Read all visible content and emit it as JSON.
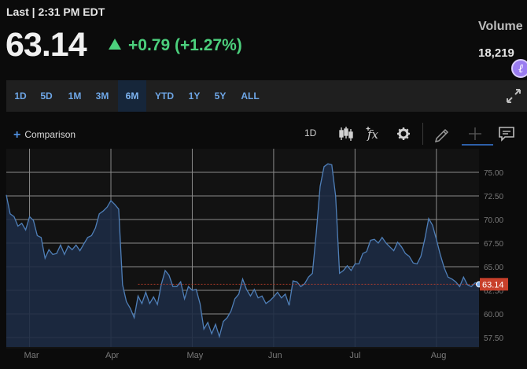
{
  "quote": {
    "last_label": "Last | 2:31 PM EDT",
    "price": "63.14",
    "change": "+0.79 (+1.27%)",
    "volume_label": "Volume",
    "volume_value": "18,219"
  },
  "ranges": [
    "1D",
    "5D",
    "1M",
    "3M",
    "6M",
    "YTD",
    "1Y",
    "5Y",
    "ALL"
  ],
  "active_range": "6M",
  "toolbar": {
    "comparison_label": "Comparison",
    "interval_label": "1D",
    "icons": [
      "candlestick-icon",
      "indicator-fx-icon",
      "settings-gear-icon",
      "draw-pencil-icon",
      "crosshair-icon",
      "comment-icon"
    ]
  },
  "colors": {
    "accent": "#4f8edc",
    "up": "#4cd07d",
    "line": "#4f7fb8",
    "fill": "#1d2b44",
    "price_tag": "#c8402b"
  },
  "chart_data": {
    "type": "area",
    "ylim": [
      56.5,
      76.5
    ],
    "yticks": [
      57.5,
      60.0,
      62.5,
      65.0,
      67.5,
      70.0,
      72.5,
      75.0
    ],
    "ytick_labels": [
      "57.50",
      "60.00",
      "62.50",
      "65.00",
      "67.50",
      "70.00",
      "72.50",
      "75.00"
    ],
    "xticks": [
      "Mar",
      "Apr",
      "May",
      "Jun",
      "Jul",
      "Aug"
    ],
    "x_axis_range": [
      0,
      122
    ],
    "xtick_positions": [
      6,
      27,
      48,
      69,
      90,
      111
    ],
    "last_price_tag": "63.14",
    "last_price": 63.14,
    "values": [
      72.6,
      70.6,
      70.3,
      69.3,
      69.6,
      68.9,
      70.3,
      69.9,
      68.3,
      68.1,
      65.9,
      66.8,
      66.3,
      66.4,
      67.3,
      66.3,
      67.2,
      66.8,
      67.3,
      66.7,
      67.4,
      68.1,
      68.3,
      69.1,
      70.6,
      70.9,
      71.3,
      72.0,
      71.6,
      71.1,
      63.1,
      61.3,
      60.6,
      59.6,
      61.9,
      61.1,
      62.3,
      61.1,
      61.8,
      61.0,
      63.1,
      64.6,
      64.1,
      62.9,
      62.9,
      63.4,
      61.6,
      62.9,
      62.5,
      62.6,
      61.1,
      58.4,
      59.1,
      57.9,
      58.9,
      57.6,
      59.2,
      59.6,
      60.3,
      61.6,
      62.1,
      63.7,
      62.6,
      61.9,
      62.6,
      61.7,
      61.9,
      61.1,
      61.4,
      61.8,
      62.3,
      61.7,
      62.1,
      60.9,
      63.5,
      63.4,
      62.9,
      63.2,
      63.9,
      64.3,
      68.6,
      73.5,
      75.6,
      75.9,
      75.8,
      72.5,
      64.3,
      64.6,
      65.1,
      64.6,
      65.3,
      65.3,
      66.4,
      66.6,
      67.8,
      67.9,
      67.5,
      68.1,
      67.5,
      67.1,
      66.7,
      67.6,
      67.1,
      66.4,
      66.1,
      65.4,
      65.3,
      66.1,
      67.9,
      70.1,
      69.4,
      67.9,
      66.3,
      64.9,
      63.9,
      63.7,
      63.4,
      62.9,
      63.9,
      63.1,
      62.9,
      63.3,
      63.14
    ]
  }
}
